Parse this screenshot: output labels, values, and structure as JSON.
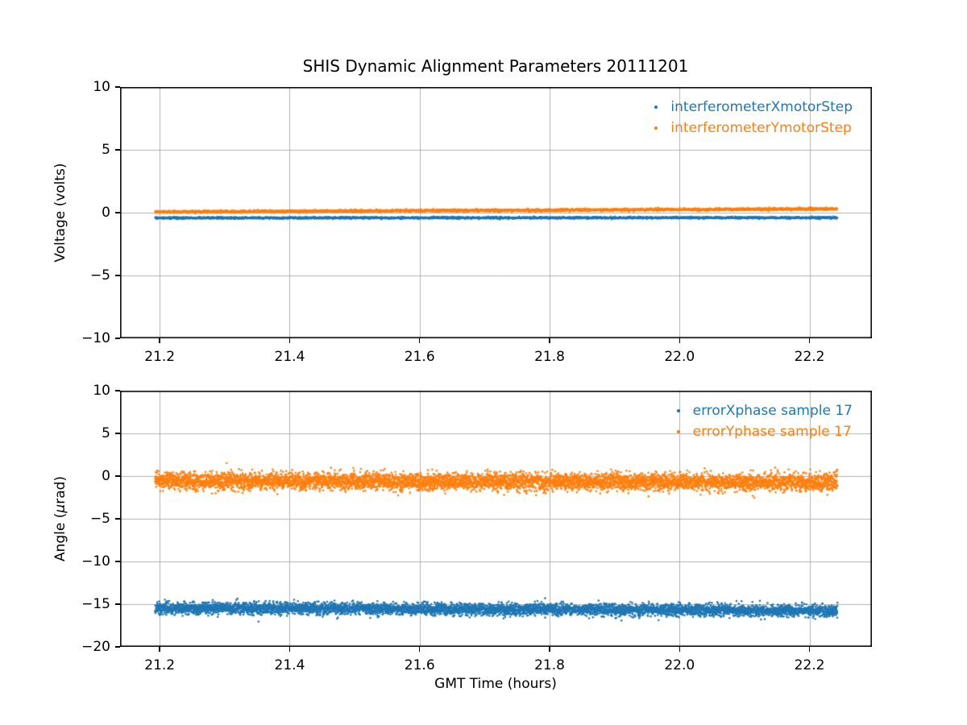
{
  "figure": {
    "title": "SHIS Dynamic Alignment Parameters 20111201",
    "xlabel": "GMT Time (hours)",
    "background_color": "#ffffff",
    "text_color": "#000000",
    "grid_color": "#b0b0b0",
    "spine_color": "#000000"
  },
  "chart_data": [
    {
      "type": "scatter",
      "ylabel": "Voltage (volts)",
      "xlim": [
        21.139,
        22.296
      ],
      "ylim": [
        -10,
        10
      ],
      "xticks": [
        21.2,
        21.4,
        21.6,
        21.8,
        22.0,
        22.2
      ],
      "xticklabels": [
        "21.2",
        "21.4",
        "21.6",
        "21.8",
        "22.0",
        "22.2"
      ],
      "yticks": [
        10,
        5,
        0,
        -5,
        -10
      ],
      "yticklabels": [
        "10",
        "5",
        "0",
        "−5",
        "−10"
      ],
      "grid": true,
      "legend": {
        "position": "upper right",
        "frame": false
      },
      "series": [
        {
          "name": "interferometerXmotorStep",
          "color": "#1f77b4",
          "x_start": 21.193,
          "x_end": 22.243,
          "y_baseline_start": -0.42,
          "y_baseline_end": -0.4,
          "y_noise_std": 0.04,
          "n_points": 5000,
          "marker_radius": 1.1
        },
        {
          "name": "interferometerYmotorStep",
          "color": "#ff7f0e",
          "x_start": 21.193,
          "x_end": 22.243,
          "y_baseline_start": 0.06,
          "y_baseline_end": 0.3,
          "y_noise_std": 0.05,
          "n_points": 5000,
          "marker_radius": 1.1
        }
      ]
    },
    {
      "type": "scatter",
      "ylabel": "Angle (μrad)",
      "ylabel_parts": [
        "Angle (",
        "μ",
        "rad)"
      ],
      "xlim": [
        21.139,
        22.296
      ],
      "ylim": [
        -20,
        10
      ],
      "xticks": [
        21.2,
        21.4,
        21.6,
        21.8,
        22.0,
        22.2
      ],
      "xticklabels": [
        "21.2",
        "21.4",
        "21.6",
        "21.8",
        "22.0",
        "22.2"
      ],
      "yticks": [
        10,
        5,
        0,
        -5,
        -10,
        -15,
        -20
      ],
      "yticklabels": [
        "10",
        "5",
        "0",
        "−5",
        "−10",
        "−15",
        "−20"
      ],
      "grid": true,
      "legend": {
        "position": "upper right",
        "frame": false
      },
      "series": [
        {
          "name": "errorXphase sample 17",
          "color": "#1f77b4",
          "x_start": 21.193,
          "x_end": 22.243,
          "y_baseline_start": -15.45,
          "y_baseline_end": -15.75,
          "y_noise_std": 0.35,
          "n_points": 6000,
          "marker_radius": 1.3
        },
        {
          "name": "errorYphase sample 17",
          "color": "#ff7f0e",
          "x_start": 21.193,
          "x_end": 22.243,
          "y_baseline_start": -0.55,
          "y_baseline_end": -0.75,
          "y_noise_std": 0.5,
          "n_points": 6000,
          "marker_radius": 1.3
        }
      ]
    }
  ]
}
